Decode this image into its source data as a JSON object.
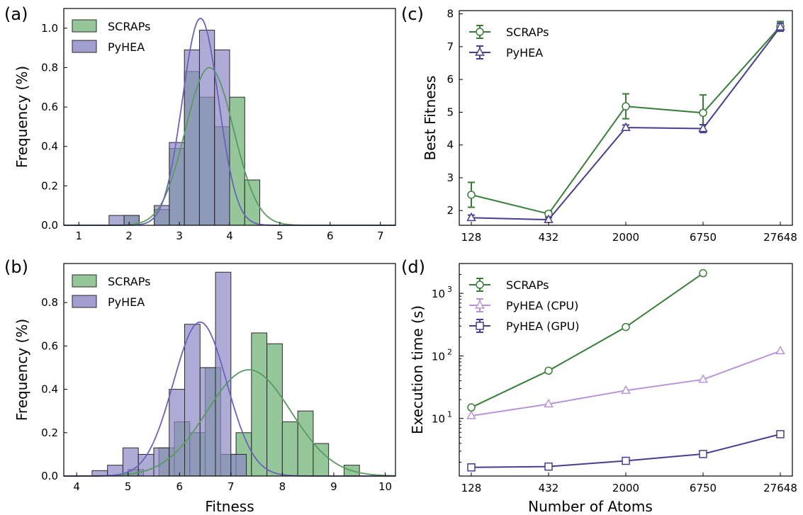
{
  "colors": {
    "green": "#3a7d3a",
    "green_fill": "#7cb982",
    "purple": "#4a3c8f",
    "purple_fill": "#8b87c4",
    "lavender": "#b894d6",
    "overlap_fill": "#7a8ba0"
  },
  "chart_data": [
    {
      "panel": "(a)",
      "type": "histogram",
      "ylabel": "Frequency (%)",
      "xlabel": "",
      "xlim": [
        0.7,
        7.3
      ],
      "ylim": [
        0,
        1.1
      ],
      "xticks": [
        "1",
        "2",
        "3",
        "4",
        "5",
        "6",
        "7"
      ],
      "yticks": [
        "0.0",
        "0.2",
        "0.4",
        "0.6",
        "0.8",
        "1.0"
      ],
      "legend_position": "top-left",
      "series": [
        {
          "name": "SCRAPs",
          "color": "#7cb982",
          "bins": [
            {
              "x0": 1.9,
              "x1": 2.2,
              "y": 0.05
            },
            {
              "x0": 2.5,
              "x1": 2.8,
              "y": 0.08
            },
            {
              "x0": 2.8,
              "x1": 3.1,
              "y": 0.39
            },
            {
              "x0": 3.1,
              "x1": 3.4,
              "y": 0.78
            },
            {
              "x0": 3.4,
              "x1": 3.7,
              "y": 0.65
            },
            {
              "x0": 3.7,
              "x1": 4.0,
              "y": 0.5
            },
            {
              "x0": 4.0,
              "x1": 4.3,
              "y": 0.65
            },
            {
              "x0": 4.3,
              "x1": 4.6,
              "y": 0.23
            }
          ],
          "kde": {
            "mean": 3.6,
            "sd": 0.48,
            "peak": 0.8
          }
        },
        {
          "name": "PyHEA",
          "color": "#8b87c4",
          "bins": [
            {
              "x0": 1.6,
              "x1": 1.9,
              "y": 0.05
            },
            {
              "x0": 1.9,
              "x1": 2.2,
              "y": 0.05
            },
            {
              "x0": 2.5,
              "x1": 2.8,
              "y": 0.1
            },
            {
              "x0": 2.8,
              "x1": 3.1,
              "y": 0.42
            },
            {
              "x0": 3.1,
              "x1": 3.4,
              "y": 0.89
            },
            {
              "x0": 3.4,
              "x1": 3.7,
              "y": 0.99
            },
            {
              "x0": 3.7,
              "x1": 4.0,
              "y": 0.89
            }
          ],
          "kde": {
            "mean": 3.42,
            "sd": 0.36,
            "peak": 1.05
          }
        }
      ]
    },
    {
      "panel": "(b)",
      "type": "histogram",
      "ylabel": "Frequency (%)",
      "xlabel": "Fitness",
      "xlim": [
        3.75,
        10.2
      ],
      "ylim": [
        0,
        0.98
      ],
      "xticks": [
        "4",
        "5",
        "6",
        "7",
        "8",
        "9",
        "10"
      ],
      "yticks": [
        "0.0",
        "0.2",
        "0.4",
        "0.6",
        "0.8"
      ],
      "legend_position": "top-left",
      "series": [
        {
          "name": "SCRAPs",
          "color": "#7cb982",
          "bins": [
            {
              "x0": 5.0,
              "x1": 5.3,
              "y": 0.03
            },
            {
              "x0": 5.6,
              "x1": 5.9,
              "y": 0.13
            },
            {
              "x0": 5.9,
              "x1": 6.2,
              "y": 0.25
            },
            {
              "x0": 6.2,
              "x1": 6.5,
              "y": 0.2
            },
            {
              "x0": 6.5,
              "x1": 6.8,
              "y": 0.5
            },
            {
              "x0": 6.8,
              "x1": 7.1,
              "y": 0.1
            },
            {
              "x0": 7.1,
              "x1": 7.4,
              "y": 0.2
            },
            {
              "x0": 7.4,
              "x1": 7.7,
              "y": 0.66
            },
            {
              "x0": 7.7,
              "x1": 8.0,
              "y": 0.61
            },
            {
              "x0": 8.0,
              "x1": 8.3,
              "y": 0.25
            },
            {
              "x0": 8.3,
              "x1": 8.6,
              "y": 0.3
            },
            {
              "x0": 8.6,
              "x1": 8.9,
              "y": 0.15
            },
            {
              "x0": 9.2,
              "x1": 9.5,
              "y": 0.05
            }
          ],
          "kde": {
            "mean": 7.35,
            "sd": 0.82,
            "peak": 0.49
          }
        },
        {
          "name": "PyHEA",
          "color": "#8b87c4",
          "bins": [
            {
              "x0": 4.3,
              "x1": 4.6,
              "y": 0.025
            },
            {
              "x0": 4.6,
              "x1": 4.9,
              "y": 0.05
            },
            {
              "x0": 4.9,
              "x1": 5.2,
              "y": 0.13
            },
            {
              "x0": 5.2,
              "x1": 5.5,
              "y": 0.1
            },
            {
              "x0": 5.5,
              "x1": 5.8,
              "y": 0.13
            },
            {
              "x0": 5.8,
              "x1": 6.1,
              "y": 0.4
            },
            {
              "x0": 6.1,
              "x1": 6.4,
              "y": 0.7
            },
            {
              "x0": 6.4,
              "x1": 6.7,
              "y": 0.5
            },
            {
              "x0": 6.7,
              "x1": 7.0,
              "y": 0.94
            },
            {
              "x0": 7.0,
              "x1": 7.3,
              "y": 0.1
            }
          ],
          "kde": {
            "mean": 6.4,
            "sd": 0.52,
            "peak": 0.71
          }
        }
      ]
    },
    {
      "panel": "(c)",
      "type": "line",
      "ylabel": "Best Fitness",
      "xlabel": "",
      "categories": [
        "128",
        "432",
        "2000",
        "6750",
        "27648"
      ],
      "ylim": [
        1.55,
        8.1
      ],
      "yticks": [
        "2",
        "3",
        "4",
        "5",
        "6",
        "7",
        "8"
      ],
      "legend_position": "top-left",
      "series": [
        {
          "name": "SCRAPs",
          "color": "#3a7d3a",
          "marker": "circle",
          "values": [
            2.48,
            1.9,
            5.18,
            4.98,
            7.62
          ],
          "errors": [
            0.38,
            0.07,
            0.38,
            0.55,
            0.15
          ]
        },
        {
          "name": "PyHEA",
          "color": "#4a3c8f",
          "marker": "triangle",
          "values": [
            1.78,
            1.72,
            4.53,
            4.5,
            7.6
          ],
          "errors": [
            0.08,
            0.06,
            0.08,
            0.12,
            0.12
          ]
        }
      ]
    },
    {
      "panel": "(d)",
      "type": "line",
      "ylabel": "Execution time (s)",
      "xlabel": "Number of Atoms",
      "categories": [
        "128",
        "432",
        "2000",
        "6750",
        "27648"
      ],
      "yscale": "log",
      "ylim": [
        1.2,
        3000
      ],
      "yticks": [
        "10",
        "10",
        "10"
      ],
      "ytick_exponents": [
        "1",
        "2",
        "3"
      ],
      "legend_position": "top-left",
      "series": [
        {
          "name": "SCRAPs",
          "color": "#3a7d3a",
          "marker": "circle",
          "values": [
            15.0,
            58.0,
            290.0,
            2100.0,
            null
          ]
        },
        {
          "name": "PyHEA (CPU)",
          "color": "#b894d6",
          "marker": "triangle",
          "values": [
            11.0,
            17.0,
            28.0,
            42.0,
            120.0
          ]
        },
        {
          "name": "PyHEA (GPU)",
          "color": "#4a3c8f",
          "marker": "square",
          "values": [
            1.65,
            1.7,
            2.1,
            2.7,
            5.6
          ]
        }
      ]
    }
  ]
}
